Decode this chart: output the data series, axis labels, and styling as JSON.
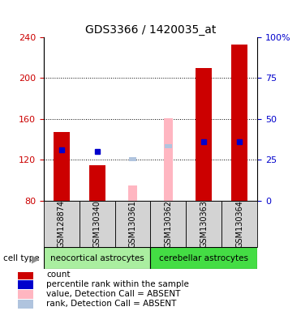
{
  "title": "GDS3366 / 1420035_at",
  "samples": [
    "GSM128874",
    "GSM130340",
    "GSM130361",
    "GSM130362",
    "GSM130363",
    "GSM130364"
  ],
  "cell_type_labels": [
    "neocortical astrocytes",
    "cerebellar astrocytes"
  ],
  "cell_type_colors": [
    "#aaeea0",
    "#44dd44"
  ],
  "ylim_left": [
    80,
    240
  ],
  "ylim_right": [
    0,
    100
  ],
  "left_ticks": [
    80,
    120,
    160,
    200,
    240
  ],
  "right_ticks": [
    0,
    25,
    50,
    75,
    100
  ],
  "right_tick_labels": [
    "0",
    "25",
    "50",
    "75",
    "100%"
  ],
  "count_values": [
    147,
    115,
    null,
    null,
    210,
    233
  ],
  "count_color": "#cc0000",
  "percentile_values": [
    130,
    128,
    null,
    null,
    138,
    138
  ],
  "percentile_color": "#0000cc",
  "absent_value_values": [
    null,
    null,
    95,
    161,
    null,
    null
  ],
  "absent_value_color": "#ffb6c1",
  "absent_rank_values": [
    null,
    null,
    121,
    133,
    null,
    null
  ],
  "absent_rank_color": "#b0c4de",
  "bar_bottom": 80,
  "left_tick_color": "#cc0000",
  "right_tick_color": "#0000cc",
  "legend_items": [
    {
      "label": "count",
      "color": "#cc0000"
    },
    {
      "label": "percentile rank within the sample",
      "color": "#0000cc"
    },
    {
      "label": "value, Detection Call = ABSENT",
      "color": "#ffb6c1"
    },
    {
      "label": "rank, Detection Call = ABSENT",
      "color": "#b0c4de"
    }
  ]
}
